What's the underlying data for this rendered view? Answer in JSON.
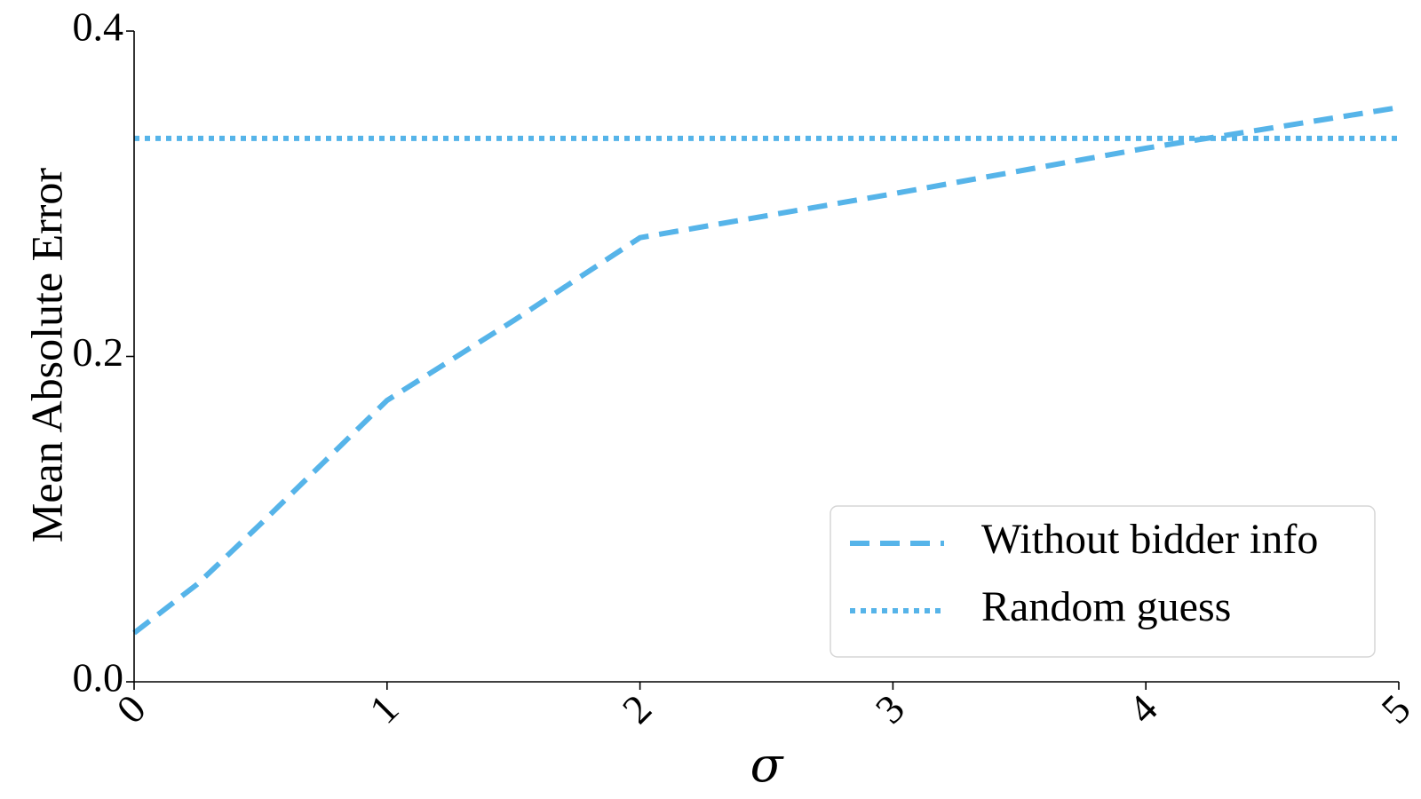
{
  "chart_data": {
    "type": "line",
    "title": "",
    "xlabel": "σ",
    "ylabel": "Mean Absolute Error",
    "xlim": [
      0,
      5
    ],
    "ylim": [
      0,
      0.4
    ],
    "x_ticks": [
      "0",
      "1",
      "2",
      "3",
      "4",
      "5"
    ],
    "y_ticks": [
      "0.0",
      "0.2",
      "0.4"
    ],
    "grid": false,
    "legend_position": "bottom-right",
    "series": [
      {
        "name": "Without bidder info",
        "style": "dashed",
        "color": "#56B4E9",
        "x": [
          0,
          0.25,
          0.5,
          0.75,
          1,
          1.5,
          2,
          3,
          4,
          5
        ],
        "y": [
          0.03,
          0.06,
          0.097,
          0.135,
          0.173,
          0.222,
          0.273,
          0.3,
          0.328,
          0.353
        ]
      },
      {
        "name": "Random guess",
        "style": "dotted",
        "color": "#56B4E9",
        "x": [
          0,
          5
        ],
        "y": [
          0.334,
          0.334
        ]
      }
    ]
  }
}
